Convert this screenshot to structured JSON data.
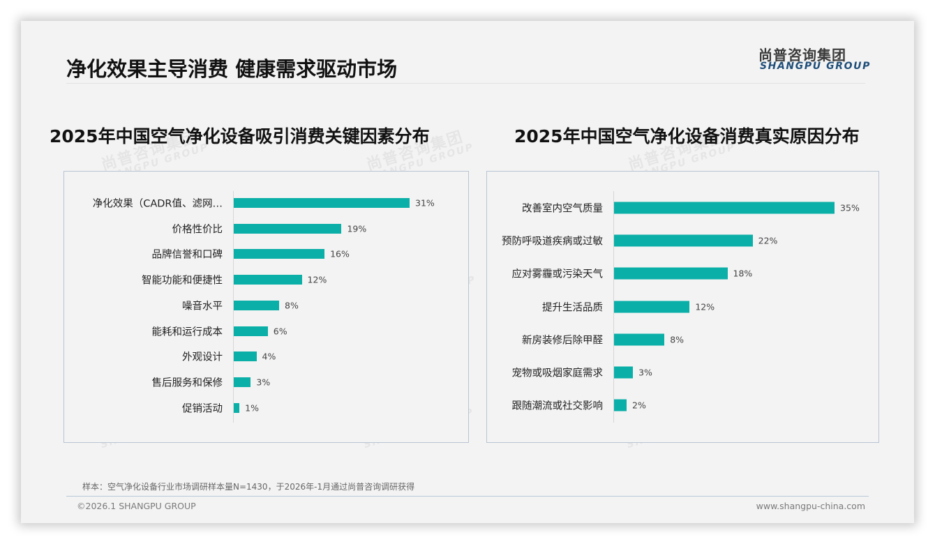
{
  "header": {
    "title": "净化效果主导消费 健康需求驱动市场",
    "logo_cn": "尚普咨询集团",
    "logo_en": "SHANGPU GROUP"
  },
  "watermark": {
    "cn": "尚普咨询集团",
    "en": "SHANGPU GROUP"
  },
  "colors": {
    "bar": "#0aafa7",
    "title": "#111111",
    "logo_en": "#1f4e79",
    "box_border": "#b8c4d2"
  },
  "charts": {
    "left": {
      "title": "2025年中国空气净化设备吸引消费关键因素分布",
      "rows": [
        {
          "label": "净化效果（CADR值、滤网…",
          "value": "31%"
        },
        {
          "label": "价格性价比",
          "value": "19%"
        },
        {
          "label": "品牌信誉和口碑",
          "value": "16%"
        },
        {
          "label": "智能功能和便捷性",
          "value": "12%"
        },
        {
          "label": "噪音水平",
          "value": "8%"
        },
        {
          "label": "能耗和运行成本",
          "value": "6%"
        },
        {
          "label": "外观设计",
          "value": "4%"
        },
        {
          "label": "售后服务和保修",
          "value": "3%"
        },
        {
          "label": "促销活动",
          "value": "1%"
        }
      ]
    },
    "right": {
      "title": "2025年中国空气净化设备消费真实原因分布",
      "rows": [
        {
          "label": "改善室内空气质量",
          "value": "35%"
        },
        {
          "label": "预防呼吸道疾病或过敏",
          "value": "22%"
        },
        {
          "label": "应对雾霾或污染天气",
          "value": "18%"
        },
        {
          "label": "提升生活品质",
          "value": "12%"
        },
        {
          "label": "新房装修后除甲醛",
          "value": "8%"
        },
        {
          "label": "宠物或吸烟家庭需求",
          "value": "3%"
        },
        {
          "label": "跟随潮流或社交影响",
          "value": "2%"
        }
      ]
    }
  },
  "chart_data": [
    {
      "type": "bar",
      "orientation": "horizontal",
      "title": "2025年中国空气净化设备吸引消费关键因素分布",
      "categories": [
        "净化效果（CADR值、滤网…",
        "价格性价比",
        "品牌信誉和口碑",
        "智能功能和便捷性",
        "噪音水平",
        "能耗和运行成本",
        "外观设计",
        "售后服务和保修",
        "促销活动"
      ],
      "values": [
        31,
        19,
        16,
        12,
        8,
        6,
        4,
        3,
        1
      ],
      "unit": "%",
      "xlabel": "",
      "ylabel": "",
      "grid": false,
      "legend": null,
      "data_labels": true
    },
    {
      "type": "bar",
      "orientation": "horizontal",
      "title": "2025年中国空气净化设备消费真实原因分布",
      "categories": [
        "改善室内空气质量",
        "预防呼吸道疾病或过敏",
        "应对雾霾或污染天气",
        "提升生活品质",
        "新房装修后除甲醛",
        "宠物或吸烟家庭需求",
        "跟随潮流或社交影响"
      ],
      "values": [
        35,
        22,
        18,
        12,
        8,
        3,
        2
      ],
      "unit": "%",
      "xlabel": "",
      "ylabel": "",
      "grid": false,
      "legend": null,
      "data_labels": true
    }
  ],
  "footer": {
    "note": "样本：空气净化设备行业市场调研样本量N=1430，于2026年-1月通过尚普咨询调研获得",
    "copyright": "©2026.1 SHANGPU GROUP",
    "website": "www.shangpu-china.com"
  }
}
